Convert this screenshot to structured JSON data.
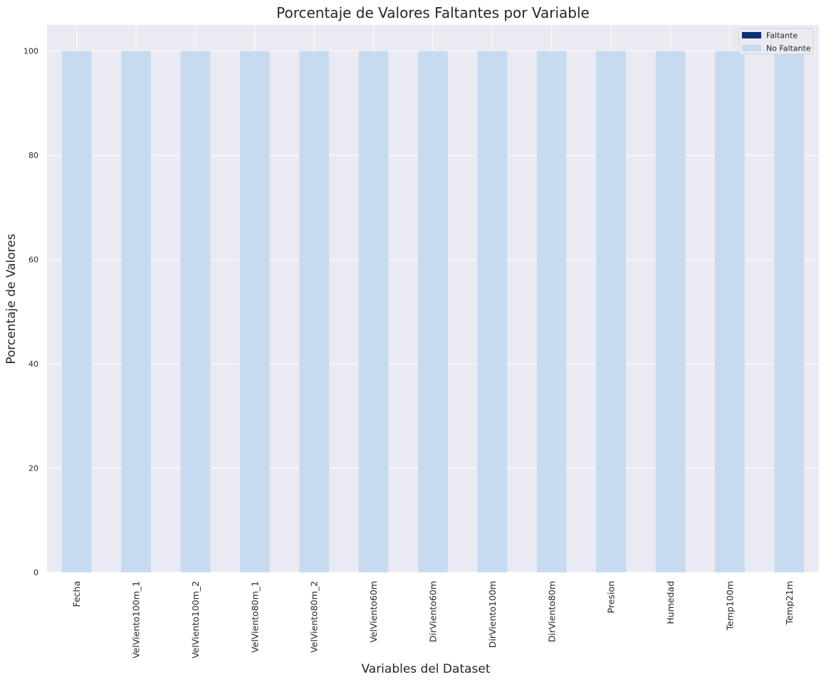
{
  "colors": {
    "background": "#eaeaf2",
    "grid": "#ffffff",
    "faltante": "#08306b",
    "no_faltante": "#c6dbef",
    "legend_frame": "#cccccc"
  },
  "chart_data": {
    "type": "bar",
    "stacked": true,
    "title": "Porcentaje de Valores Faltantes por Variable",
    "xlabel": "Variables del Dataset",
    "ylabel": "Porcentaje de Valores",
    "ylim": [
      0,
      105
    ],
    "yticks": [
      "0",
      "20",
      "40",
      "60",
      "80",
      "100"
    ],
    "grid": true,
    "legend_position": "top-right",
    "categories": [
      "Fecha",
      "VelViento100m_1",
      "VelViento100m_2",
      "VelViento80m_1",
      "VelViento80m_2",
      "VelViento60m",
      "DirViento60m",
      "DirViento100m",
      "DirViento80m",
      "Presion",
      "Humedad",
      "Temp100m",
      "Temp21m"
    ],
    "series": [
      {
        "name": "Faltante",
        "values": [
          0,
          0,
          0,
          0,
          0,
          0,
          0,
          0,
          0,
          0,
          0,
          0,
          0
        ]
      },
      {
        "name": "No Faltante",
        "values": [
          100,
          100,
          100,
          100,
          100,
          100,
          100,
          100,
          100,
          100,
          100,
          100,
          100
        ]
      }
    ]
  }
}
